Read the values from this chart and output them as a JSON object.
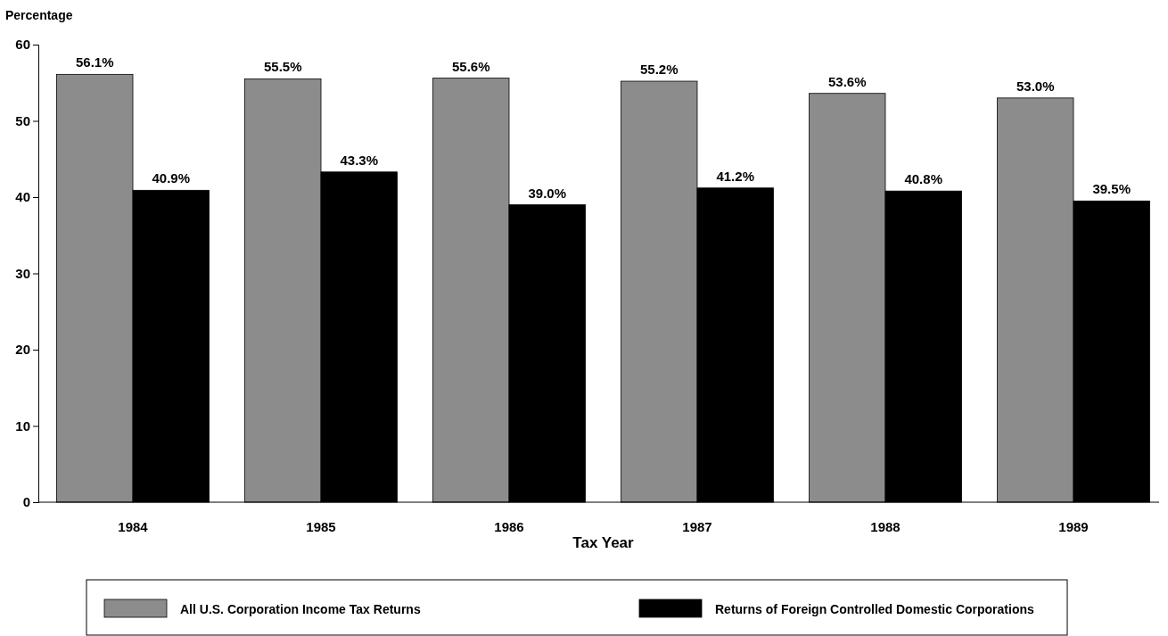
{
  "chart_data": {
    "type": "bar",
    "ylabel": "Percentage",
    "xlabel": "Tax Year",
    "categories": [
      "1984",
      "1985",
      "1986",
      "1987",
      "1988",
      "1989"
    ],
    "series": [
      {
        "name": "All U.S. Corporation Income Tax Returns",
        "color": "#8c8c8c",
        "values": [
          56.1,
          55.5,
          55.6,
          55.2,
          53.6,
          53.0
        ],
        "value_labels": [
          "56.1%",
          "55.5%",
          "55.6%",
          "55.2%",
          "53.6%",
          "53.0%"
        ]
      },
      {
        "name": "Returns of Foreign Controlled Domestic Corporations",
        "color": "#000000",
        "values": [
          40.9,
          43.3,
          39.0,
          41.2,
          40.8,
          39.5
        ],
        "value_labels": [
          "40.9%",
          "43.3%",
          "39.0%",
          "41.2%",
          "40.8%",
          "39.5%"
        ]
      }
    ],
    "ylim": [
      0,
      60
    ],
    "yticks": [
      0,
      10,
      20,
      30,
      40,
      50,
      60
    ],
    "grid": false,
    "legend": "bottom"
  }
}
